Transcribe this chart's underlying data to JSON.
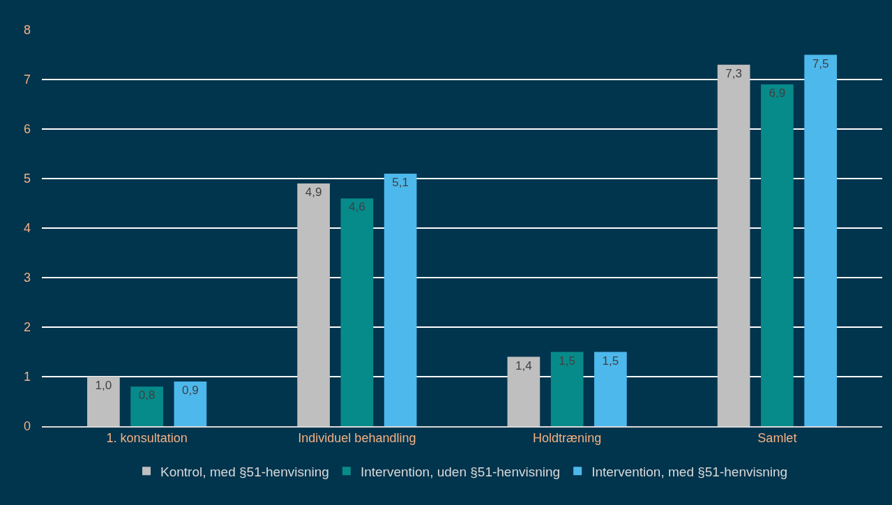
{
  "chart_data": {
    "type": "bar",
    "categories": [
      "1. konsultation",
      "Individuel behandling",
      "Holdtræning",
      "Samlet"
    ],
    "series": [
      {
        "name": "Kontrol, med §51-henvisning",
        "color": "#bfbfbf",
        "values": [
          1.0,
          4.9,
          1.4,
          7.3
        ],
        "value_labels": [
          "1,0",
          "4,9",
          "1,4",
          "7,3"
        ]
      },
      {
        "name": "Intervention, uden §51-henvisning",
        "color": "#078a8a",
        "values": [
          0.8,
          4.6,
          1.5,
          6.9
        ],
        "value_labels": [
          "0,8",
          "4,6",
          "1,5",
          "6,9"
        ]
      },
      {
        "name": "Intervention, med §51-henvisning",
        "color": "#4db8ec",
        "values": [
          0.9,
          5.1,
          1.5,
          7.5
        ],
        "value_labels": [
          "0,9",
          "5,1",
          "1,5",
          "7,5"
        ]
      }
    ],
    "ylim": [
      0,
      8
    ],
    "yticks": [
      0,
      1,
      2,
      3,
      4,
      5,
      6,
      7,
      8
    ],
    "grid": "y",
    "legend": "bottom"
  }
}
